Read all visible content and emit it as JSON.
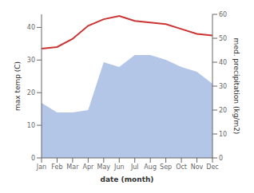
{
  "chart_data": {
    "type": "line",
    "categories": [
      "Jan",
      "Feb",
      "Mar",
      "Apr",
      "May",
      "Jun",
      "Jul",
      "Aug",
      "Sep",
      "Oct",
      "Nov",
      "Dec"
    ],
    "xlabel": "date (month)",
    "ylabel": "max temp (C)",
    "y2label": "med. precipitation (kg/m2)",
    "ylim": [
      0,
      44
    ],
    "yticks": [
      0,
      10,
      20,
      30,
      40
    ],
    "y2lim": [
      0,
      60
    ],
    "y2ticks": [
      0,
      10,
      20,
      30,
      40,
      50,
      60
    ],
    "grid": false,
    "series": [
      {
        "type": "area",
        "axis": "y2",
        "color": "#b3c6e8",
        "values": [
          23,
          19,
          19,
          20,
          40,
          38,
          43,
          43,
          41,
          38,
          36,
          31
        ]
      },
      {
        "type": "line",
        "color": "#cc3333",
        "values": [
          33.5,
          34.0,
          36.5,
          40.5,
          42.5,
          43.5,
          42.0,
          41.5,
          41.0,
          39.5,
          38.0,
          37.5
        ]
      }
    ]
  }
}
